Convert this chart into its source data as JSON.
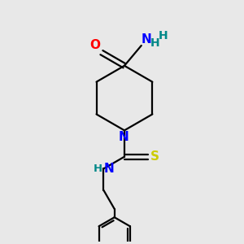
{
  "bg_color": "#e8e8e8",
  "bond_color": "#000000",
  "colors": {
    "O": "#ff0000",
    "N": "#0000ff",
    "S": "#cccc00",
    "H": "#008888",
    "C": "#000000"
  },
  "line_width": 1.6,
  "font_size": 10.5
}
